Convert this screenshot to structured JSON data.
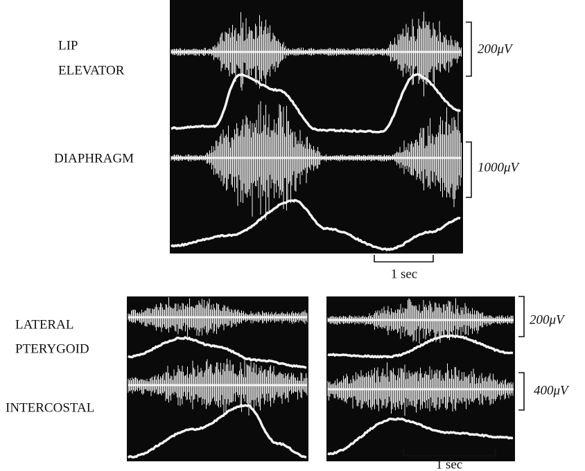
{
  "top_figure": {
    "lip_label": [
      "LIP",
      "ELEVATOR"
    ],
    "diaphragm_label": "DIAPHRAGM",
    "scale_bars": [
      "200μV",
      "1000μV"
    ],
    "time_bar": "1 sec"
  },
  "bottom_figure": {
    "pterygoid_label": [
      "LATERAL",
      "PTERYGOID"
    ],
    "intercostal_label": "INTERCOSTAL",
    "scale_bars": [
      "200μV",
      "400μV"
    ],
    "time_bar": "1 sec"
  }
}
